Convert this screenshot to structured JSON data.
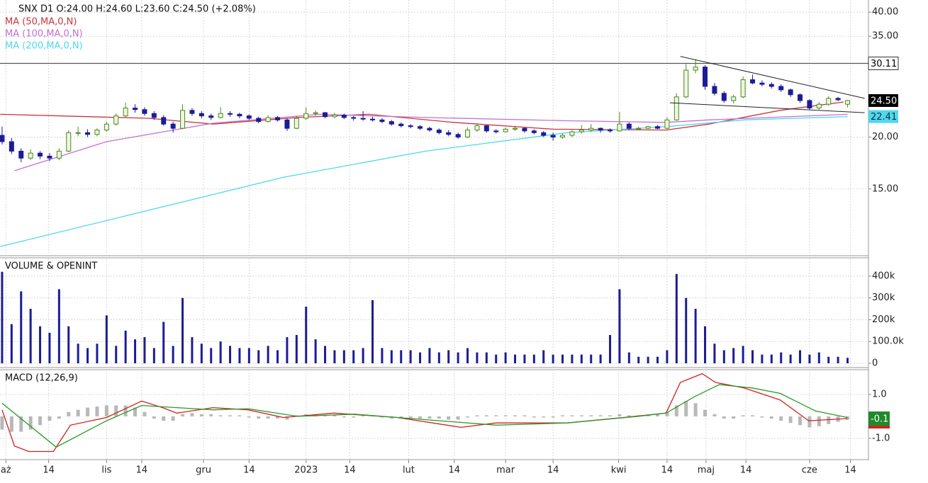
{
  "chart_data": [
    {
      "type": "candlestick",
      "title": "SNX D1  O:24.00  H:24.60  L:23.60  C:24.50  (+2.08%)",
      "xlim": [
        -0.22,
        91.2
      ],
      "ylim": [
        10.4,
        42.8
      ],
      "log_scale": true,
      "grid": true,
      "yticks": [
        {
          "value": 15,
          "label": "15.00"
        },
        {
          "value": 20,
          "label": "20.00"
        },
        {
          "value": 35,
          "label": "35.00"
        },
        {
          "value": 40,
          "label": "40.00"
        }
      ],
      "up_color": "#4a8c1c",
      "down_color": "#1c1c96",
      "candles": [
        [
          20.2,
          21.2,
          19.2,
          19.5
        ],
        [
          19.5,
          19.9,
          18.2,
          18.5
        ],
        [
          18.5,
          18.8,
          17.4,
          17.8
        ],
        [
          17.8,
          18.7,
          17.6,
          18.3
        ],
        [
          18.3,
          18.5,
          17.7,
          18.0
        ],
        [
          18.0,
          18.3,
          17.5,
          17.8
        ],
        [
          17.8,
          18.8,
          17.6,
          18.5
        ],
        [
          18.5,
          20.8,
          18.4,
          20.5
        ],
        [
          20.5,
          21.2,
          20.1,
          20.5
        ],
        [
          20.5,
          20.9,
          20.0,
          20.3
        ],
        [
          20.3,
          21.0,
          20.1,
          20.8
        ],
        [
          20.8,
          21.8,
          20.6,
          21.5
        ],
        [
          21.5,
          22.8,
          21.3,
          22.5
        ],
        [
          22.5,
          24.2,
          22.3,
          23.5
        ],
        [
          23.5,
          24.0,
          22.9,
          23.3
        ],
        [
          23.3,
          23.6,
          22.5,
          22.8
        ],
        [
          22.8,
          23.1,
          22.0,
          22.3
        ],
        [
          22.3,
          22.6,
          21.3,
          21.5
        ],
        [
          21.5,
          21.8,
          20.5,
          21.0
        ],
        [
          21.0,
          24.0,
          20.9,
          23.2
        ],
        [
          23.2,
          23.5,
          22.5,
          22.8
        ],
        [
          22.8,
          23.1,
          22.2,
          22.5
        ],
        [
          22.5,
          22.8,
          22.0,
          22.3
        ],
        [
          22.3,
          23.6,
          22.2,
          22.8
        ],
        [
          22.8,
          23.1,
          22.4,
          22.7
        ],
        [
          22.7,
          22.9,
          22.2,
          22.5
        ],
        [
          22.5,
          22.7,
          22.0,
          22.2
        ],
        [
          22.2,
          22.4,
          21.6,
          21.8
        ],
        [
          21.8,
          22.6,
          21.7,
          22.3
        ],
        [
          22.3,
          22.5,
          21.8,
          22.0
        ],
        [
          22.0,
          22.2,
          20.7,
          21.0
        ],
        [
          21.0,
          22.5,
          20.9,
          22.2
        ],
        [
          22.2,
          23.6,
          22.0,
          22.8
        ],
        [
          22.8,
          23.2,
          22.5,
          22.9
        ],
        [
          22.9,
          23.0,
          22.2,
          22.4
        ],
        [
          22.4,
          22.9,
          22.2,
          22.6
        ],
        [
          22.6,
          22.8,
          22.1,
          22.3
        ],
        [
          22.3,
          22.5,
          21.9,
          22.2
        ],
        [
          22.2,
          23.1,
          21.9,
          22.1
        ],
        [
          22.1,
          22.4,
          21.8,
          22.0
        ],
        [
          22.0,
          22.2,
          21.6,
          21.8
        ],
        [
          21.8,
          22.0,
          21.3,
          21.5
        ],
        [
          21.5,
          21.7,
          21.1,
          21.3
        ],
        [
          21.3,
          21.5,
          21.0,
          21.2
        ],
        [
          21.2,
          21.4,
          20.8,
          21.0
        ],
        [
          21.0,
          21.2,
          20.6,
          20.8
        ],
        [
          20.8,
          21.0,
          20.3,
          20.5
        ],
        [
          20.5,
          20.8,
          20.1,
          20.3
        ],
        [
          20.3,
          20.5,
          19.8,
          20.0
        ],
        [
          20.0,
          21.1,
          19.9,
          20.8
        ],
        [
          20.8,
          21.6,
          20.6,
          21.3
        ],
        [
          21.3,
          21.4,
          20.5,
          20.7
        ],
        [
          20.7,
          20.9,
          20.4,
          20.6
        ],
        [
          20.6,
          21.1,
          20.5,
          20.9
        ],
        [
          20.9,
          21.3,
          20.7,
          21.0
        ],
        [
          21.0,
          21.1,
          20.5,
          20.7
        ],
        [
          20.7,
          20.9,
          20.3,
          20.5
        ],
        [
          20.5,
          20.7,
          20.0,
          20.2
        ],
        [
          20.2,
          20.5,
          19.6,
          20.0
        ],
        [
          20.0,
          20.4,
          19.8,
          20.2
        ],
        [
          20.2,
          20.8,
          20.0,
          20.6
        ],
        [
          20.6,
          21.4,
          20.4,
          20.8
        ],
        [
          20.8,
          21.5,
          20.6,
          21.0
        ],
        [
          21.0,
          21.1,
          20.5,
          20.8
        ],
        [
          20.8,
          21.0,
          20.5,
          20.7
        ],
        [
          20.7,
          23.0,
          20.6,
          21.5
        ],
        [
          21.5,
          21.7,
          20.8,
          21.0
        ],
        [
          21.0,
          21.2,
          20.8,
          21.0
        ],
        [
          21.0,
          21.3,
          20.9,
          21.2
        ],
        [
          21.2,
          21.4,
          20.9,
          21.0
        ],
        [
          21.0,
          22.3,
          20.9,
          22.0
        ],
        [
          22.0,
          25.5,
          21.9,
          25.0
        ],
        [
          25.0,
          30.0,
          24.8,
          29.0
        ],
        [
          29.0,
          30.8,
          28.5,
          29.5
        ],
        [
          29.5,
          29.8,
          26.0,
          26.5
        ],
        [
          26.5,
          27.0,
          25.2,
          25.5
        ],
        [
          25.5,
          25.8,
          24.2,
          24.5
        ],
        [
          24.5,
          25.3,
          24.1,
          25.0
        ],
        [
          25.0,
          28.0,
          24.8,
          27.5
        ],
        [
          27.5,
          28.3,
          26.8,
          27.0
        ],
        [
          27.0,
          27.4,
          26.5,
          26.8
        ],
        [
          26.8,
          27.1,
          26.2,
          26.5
        ],
        [
          26.5,
          26.8,
          25.7,
          26.0
        ],
        [
          26.0,
          26.2,
          25.0,
          25.3
        ],
        [
          25.3,
          25.5,
          24.2,
          24.5
        ],
        [
          24.5,
          24.7,
          23.3,
          23.5
        ],
        [
          23.5,
          24.3,
          23.3,
          24.0
        ],
        [
          24.0,
          25.1,
          23.8,
          24.8
        ],
        [
          24.8,
          25.0,
          24.4,
          24.6
        ],
        [
          24.0,
          24.6,
          23.6,
          24.5
        ]
      ],
      "series": [
        {
          "name": "MA (50,MA,0,N)",
          "color": "#c8343c",
          "x": [
            -0.2,
            15.4,
            22.2,
            31.1,
            38.6,
            47.5,
            58,
            69.9,
            74.4,
            81.9,
            88.6
          ],
          "values": [
            22.7,
            22.2,
            21.5,
            22.3,
            22.7,
            21.7,
            20.9,
            20.8,
            21.5,
            23.2,
            24.3
          ]
        },
        {
          "name": "MA (100,MA,0,N)",
          "color": "#c071d6",
          "x": [
            1.3,
            11,
            22.2,
            33.4,
            44.6,
            59.5,
            69.9,
            74.4,
            89
          ],
          "values": [
            16.6,
            19.5,
            21.6,
            22.7,
            22.3,
            21.9,
            21.7,
            22.0,
            22.7
          ]
        },
        {
          "name": "MA (200,MA,0,N)",
          "color": "#4fd8ee",
          "x": [
            -0.2,
            14.7,
            29.6,
            44.6,
            59.5,
            69.9,
            78.1,
            89
          ],
          "values": [
            10.9,
            13.2,
            16.0,
            18.5,
            20.5,
            21.2,
            22.0,
            22.41
          ]
        }
      ],
      "level": {
        "value": 30.11,
        "label": "30.11"
      },
      "last_price": {
        "value": 24.5,
        "label": "24.50"
      },
      "ma_price": {
        "value": 22.41,
        "label": "22.41"
      },
      "trendlines": [
        {
          "x": [
            71.4,
            90.8
          ],
          "values": [
            31.3,
            24.8
          ]
        },
        {
          "x": [
            70.3,
            90.8
          ],
          "values": [
            24.2,
            22.9
          ]
        }
      ]
    },
    {
      "type": "bar",
      "title": "VOLUME & OPENINT",
      "color": "#1c1c96",
      "ylim": [
        -22800,
        481000
      ],
      "yticks": [
        0,
        {
          "value": 100000,
          "label": "100.0k"
        },
        {
          "value": 200000,
          "label": "200k"
        },
        {
          "value": 300000,
          "label": "300k"
        },
        {
          "value": 400000,
          "label": "400k"
        }
      ],
      "values": [
        420000,
        180000,
        330000,
        250000,
        170000,
        140000,
        340000,
        170000,
        90000,
        70000,
        90000,
        220000,
        80000,
        150000,
        110000,
        120000,
        70000,
        190000,
        80000,
        300000,
        120000,
        90000,
        70000,
        100000,
        80000,
        70000,
        70000,
        60000,
        80000,
        60000,
        120000,
        130000,
        260000,
        110000,
        80000,
        60000,
        60000,
        60000,
        70000,
        290000,
        70000,
        60000,
        60000,
        60000,
        50000,
        70000,
        50000,
        60000,
        50000,
        70000,
        50000,
        50000,
        40000,
        50000,
        40000,
        40000,
        40000,
        60000,
        40000,
        40000,
        40000,
        40000,
        40000,
        40000,
        130000,
        340000,
        50000,
        30000,
        30000,
        30000,
        60000,
        410000,
        300000,
        250000,
        170000,
        90000,
        60000,
        70000,
        80000,
        60000,
        40000,
        40000,
        50000,
        40000,
        60000,
        40000,
        50000,
        30000,
        30000,
        25000
      ]
    },
    {
      "type": "macd",
      "title": "MACD (12,26,9)",
      "xlim": [
        -0.22,
        91.2
      ],
      "ylim": [
        -1.94,
        2.13
      ],
      "yticks": [
        {
          "value": 1,
          "label": "1.0"
        },
        {
          "value": -1,
          "label": "-1.0"
        }
      ],
      "xticks": [
        {
          "value": 0.4,
          "label": "aż"
        },
        {
          "value": 4.9,
          "label": "14"
        },
        {
          "value": 11,
          "label": "lis"
        },
        {
          "value": 14.7,
          "label": "14"
        },
        {
          "value": 21.2,
          "label": "gru"
        },
        {
          "value": 26,
          "label": "14"
        },
        {
          "value": 32,
          "label": "2023"
        },
        {
          "value": 36.6,
          "label": "14"
        },
        {
          "value": 42.8,
          "label": "lut"
        },
        {
          "value": 47.6,
          "label": "14"
        },
        {
          "value": 53,
          "label": "mar"
        },
        {
          "value": 58,
          "label": "14"
        },
        {
          "value": 64.9,
          "label": "kwi"
        },
        {
          "value": 70,
          "label": "14"
        },
        {
          "value": 74.1,
          "label": "maj"
        },
        {
          "value": 78.3,
          "label": "14"
        },
        {
          "value": 85,
          "label": "cze"
        },
        {
          "value": 89.3,
          "label": "14"
        }
      ],
      "histogram": {
        "color": "#b8b8b8",
        "values": [
          -0.6,
          -0.7,
          -0.7,
          -0.6,
          -0.4,
          -0.2,
          -0.1,
          0.2,
          0.3,
          0.4,
          0.45,
          0.5,
          0.5,
          0.5,
          0.4,
          0.2,
          -0.1,
          -0.2,
          -0.2,
          0.1,
          0.15,
          0.1,
          0.1,
          0.05,
          0.05,
          0.05,
          -0.05,
          -0.1,
          -0.1,
          -0.1,
          -0.15,
          0.05,
          0.1,
          0.1,
          0.05,
          0.05,
          -0.05,
          -0.05,
          0.05,
          0.05,
          -0.05,
          -0.1,
          -0.1,
          -0.1,
          -0.1,
          -0.1,
          -0.1,
          -0.15,
          -0.15,
          -0.05,
          0.05,
          0.05,
          0.05,
          0.05,
          0.05,
          0.05,
          -0.05,
          -0.05,
          -0.05,
          0.05,
          0.05,
          0.05,
          0.05,
          0.05,
          0.05,
          0.1,
          0.05,
          0.05,
          0.05,
          0.1,
          0.2,
          0.5,
          0.7,
          0.6,
          0.3,
          0.1,
          -0.1,
          -0.1,
          0.05,
          0.05,
          -0.05,
          -0.1,
          -0.2,
          -0.3,
          -0.4,
          -0.5,
          -0.45,
          -0.35,
          -0.25,
          -0.15
        ]
      },
      "series": [
        {
          "color": "#d02020",
          "x": [
            0,
            1.3,
            2.8,
            5.4,
            7.2,
            11,
            14.7,
            16.9,
            18.4,
            22.2,
            25.9,
            29.6,
            34.9,
            41.6,
            48.3,
            52,
            59.5,
            65.4,
            69.9,
            71.4,
            73.7,
            75.1,
            78.1,
            81.9,
            84.9,
            89
          ],
          "values": [
            0.3,
            -1.35,
            -1.6,
            -1.6,
            -0.4,
            -0.05,
            0.7,
            0.4,
            0.15,
            0.4,
            0.3,
            -0.05,
            0.15,
            -0.05,
            -0.5,
            -0.3,
            -0.3,
            -0.05,
            0.15,
            1.55,
            1.95,
            1.55,
            1.3,
            0.75,
            -0.2,
            -0.1
          ]
        },
        {
          "color": "#2a9a2a",
          "x": [
            0,
            5.7,
            11,
            14.7,
            18.4,
            22.2,
            25.9,
            31.1,
            37.1,
            44.6,
            52,
            59.5,
            67,
            69.9,
            72.9,
            75.5,
            78.9,
            81.9,
            85.6,
            89
          ],
          "values": [
            0.6,
            -1.4,
            -0.2,
            0.5,
            0.4,
            0.3,
            0.35,
            0,
            0.1,
            -0.15,
            -0.4,
            -0.3,
            0,
            0.15,
            0.9,
            1.45,
            1.3,
            1.05,
            0.25,
            -0.05
          ]
        }
      ],
      "last_value": {
        "value": -0.1,
        "label": "-0.1"
      }
    }
  ]
}
